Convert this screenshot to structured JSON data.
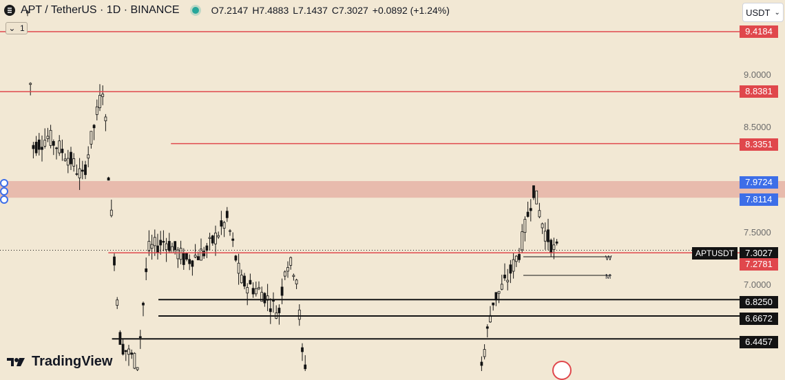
{
  "header": {
    "title": "APT / TetherUS · 1D · BINANCE",
    "open": "O7.2147",
    "high": "H7.4883",
    "low": "L7.1437",
    "close": "C7.3027",
    "change": "+0.0892 (+1.24%)",
    "collapse_count": "1"
  },
  "currency_select": {
    "value": "USDT"
  },
  "brand": {
    "name": "TradingView"
  },
  "colors": {
    "background": "#f2e8d4",
    "red_level": "#e0474c",
    "blue_level": "#3d6ee8",
    "zone": "#e6b3a6",
    "candle": "#131313"
  },
  "chart_data": {
    "type": "candlestick",
    "symbol": "APTUSDT",
    "last_price": 7.3027,
    "y_axis_labels": [
      "9.0000",
      "8.5000",
      "7.5000",
      "7.0000"
    ],
    "ylim": [
      6.2,
      9.6
    ],
    "levels": [
      {
        "price": 9.4184,
        "label": "9.4184",
        "color": "red",
        "from": 0.0
      },
      {
        "price": 8.8381,
        "label": "8.8381",
        "color": "red",
        "from": 0.0
      },
      {
        "price": 8.3351,
        "label": "8.3351",
        "color": "red",
        "from": 0.232
      },
      {
        "price": 7.2781,
        "label": "7.2781",
        "color": "red",
        "from": 0.147
      },
      {
        "price": 6.825,
        "label": "6.8250",
        "color": "black",
        "from": 0.215
      },
      {
        "price": 6.6672,
        "label": "6.6672",
        "color": "black",
        "from": 0.215
      },
      {
        "price": 6.4457,
        "label": "6.4457",
        "color": "black",
        "from": 0.152
      }
    ],
    "zone": {
      "top": 7.9724,
      "bottom": 7.8114,
      "top_label": "7.9724",
      "bottom_label": "7.8114"
    },
    "timeframe_marks": [
      {
        "label": "W",
        "price": 7.24
      },
      {
        "label": "M",
        "price": 7.06
      }
    ]
  }
}
